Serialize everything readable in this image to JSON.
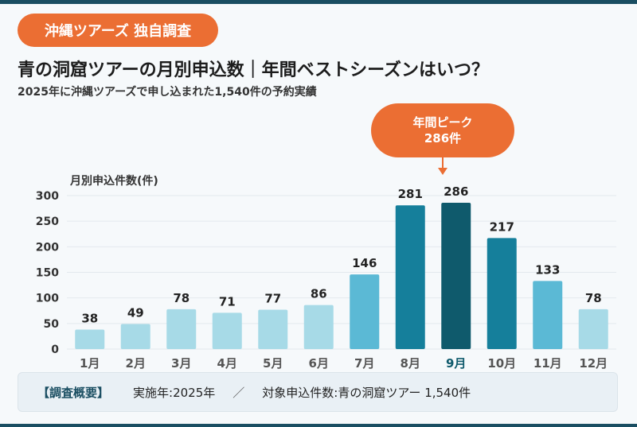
{
  "header": {
    "badge": "沖縄ツアーズ 独自調査",
    "title": "青の洞窟ツアーの月別申込数｜年間ベストシーズンはいつ？",
    "subtitle": "2025年に沖縄ツアーズで申し込まれた1,540件の予約実績"
  },
  "peak": {
    "label": "年間ピーク",
    "value": "286件"
  },
  "footer": {
    "heading": "【調査概要】",
    "item1": "実施年:2025年",
    "separator": "／",
    "item2": "対象申込件数:青の洞窟ツアー 1,540件"
  },
  "chart_data": {
    "type": "bar",
    "title": "",
    "ylabel": "月別申込件数(件)",
    "xlabel": "",
    "ylim": [
      0,
      300
    ],
    "yticks": [
      0,
      50,
      100,
      150,
      200,
      250,
      300
    ],
    "grid": true,
    "legend": "none",
    "categories": [
      "1月",
      "2月",
      "3月",
      "4月",
      "5月",
      "6月",
      "7月",
      "8月",
      "9月",
      "10月",
      "11月",
      "12月"
    ],
    "values": [
      38,
      49,
      78,
      71,
      77,
      86,
      146,
      281,
      286,
      217,
      133,
      78
    ],
    "highlight_index": 8,
    "colors": {
      "low": "#a7dae7",
      "mid": "#5bb9d5",
      "high": "#157f9b",
      "peak": "#0f5a6c",
      "accent": "#eb6e33",
      "grid": "#e3e9ee"
    }
  }
}
